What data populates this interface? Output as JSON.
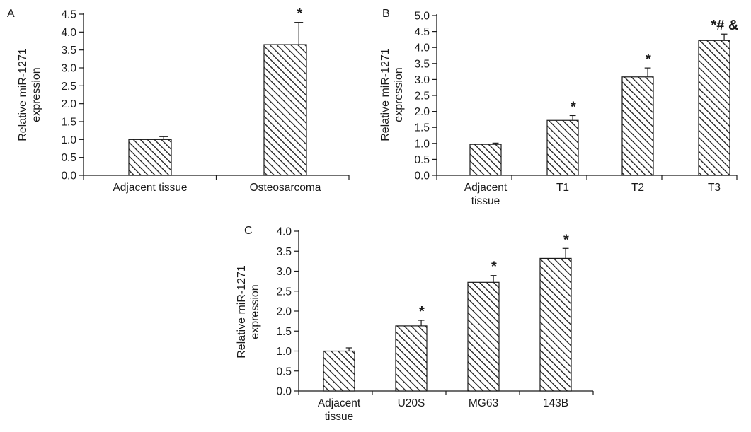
{
  "chart_data": [
    {
      "panel": "A",
      "type": "bar",
      "categories": [
        [
          "Adjacent tissue"
        ],
        [
          "Osteosarcoma"
        ]
      ],
      "values": [
        1.0,
        3.65
      ],
      "errors": [
        0.08,
        0.62
      ],
      "annotations": [
        "",
        "*"
      ],
      "ylabel": [
        "Relative miR-1271",
        "expression"
      ],
      "ylim": [
        0,
        4.5
      ],
      "yticks": [
        "0.0",
        "0.5",
        "1.0",
        "1.5",
        "2.0",
        "2.5",
        "3.0",
        "3.5",
        "4.0",
        "4.5"
      ],
      "grid": false,
      "fill": "diagonal-hatch"
    },
    {
      "panel": "B",
      "type": "bar",
      "categories": [
        [
          "Adjacent",
          "tissue"
        ],
        [
          "T1"
        ],
        [
          "T2"
        ],
        [
          "T3"
        ]
      ],
      "values": [
        0.97,
        1.72,
        3.08,
        4.22
      ],
      "errors": [
        0.04,
        0.15,
        0.28,
        0.2
      ],
      "annotations": [
        "",
        "*",
        "*",
        "*# &"
      ],
      "ylabel": [
        "Relative miR-1271",
        "expression"
      ],
      "ylim": [
        0,
        5.0
      ],
      "yticks": [
        "0.0",
        "0.5",
        "1.0",
        "1.5",
        "2.0",
        "2.5",
        "3.0",
        "3.5",
        "4.0",
        "4.5",
        "5.0"
      ],
      "grid": false,
      "fill": "diagonal-hatch"
    },
    {
      "panel": "C",
      "type": "bar",
      "categories": [
        [
          "Adjacent",
          "tissue"
        ],
        [
          "U20S"
        ],
        [
          "MG63"
        ],
        [
          "143B"
        ]
      ],
      "values": [
        1.0,
        1.63,
        2.72,
        3.32
      ],
      "errors": [
        0.08,
        0.14,
        0.17,
        0.25
      ],
      "annotations": [
        "",
        "*",
        "*",
        "*"
      ],
      "ylabel": [
        "Relative miR-1271",
        "expression"
      ],
      "ylim": [
        0,
        4.0
      ],
      "yticks": [
        "0.0",
        "0.5",
        "1.0",
        "1.5",
        "2.0",
        "2.5",
        "3.0",
        "3.5",
        "4.0"
      ],
      "grid": false,
      "fill": "diagonal-hatch"
    }
  ],
  "colors": {
    "ink": "#1a1a1a",
    "background": "#ffffff"
  }
}
